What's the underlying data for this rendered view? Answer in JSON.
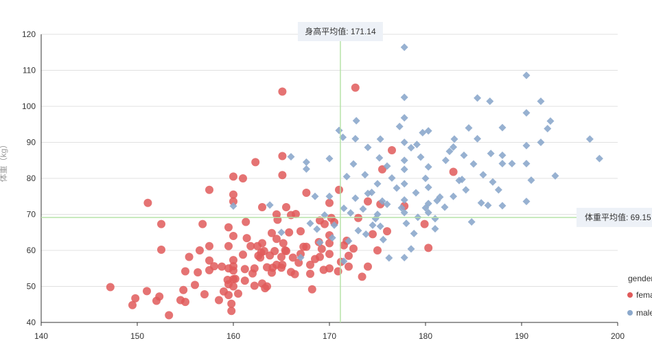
{
  "chart_data": {
    "type": "scatter",
    "xlabel": "",
    "ylabel": "体重（kg）",
    "xlim": [
      140,
      200
    ],
    "ylim": [
      40,
      120
    ],
    "x_ticks": [
      "140",
      "150",
      "160",
      "170",
      "180",
      "190",
      "200"
    ],
    "y_ticks": [
      "40",
      "50",
      "60",
      "70",
      "80",
      "90",
      "100",
      "110",
      "120"
    ],
    "grid": true,
    "legend": {
      "placement": "right",
      "title": "gender",
      "items": [
        "female",
        "male"
      ]
    },
    "mark_lines": {
      "x_mean": {
        "label": "身高平均值: 171.14",
        "value": 171.14
      },
      "y_mean": {
        "label": "体重平均值: 69.15",
        "value": 69.15
      }
    },
    "series": [
      {
        "name": "female",
        "color": "#e05a5a",
        "points": [
          [
            147.2,
            49.8
          ],
          [
            149.5,
            44.8
          ],
          [
            149.8,
            46.7
          ],
          [
            151.0,
            48.7
          ],
          [
            151.1,
            73.2
          ],
          [
            152.0,
            46.0
          ],
          [
            152.3,
            47.2
          ],
          [
            152.5,
            60.2
          ],
          [
            152.5,
            67.3
          ],
          [
            153.3,
            42.0
          ],
          [
            154.5,
            46.2
          ],
          [
            154.8,
            49.0
          ],
          [
            155.0,
            45.7
          ],
          [
            155.0,
            54.2
          ],
          [
            155.4,
            58.2
          ],
          [
            156.0,
            50.4
          ],
          [
            156.3,
            53.9
          ],
          [
            156.5,
            60.0
          ],
          [
            156.8,
            67.3
          ],
          [
            157.0,
            47.8
          ],
          [
            157.5,
            54.5
          ],
          [
            157.5,
            57.2
          ],
          [
            157.5,
            61.2
          ],
          [
            157.5,
            76.8
          ],
          [
            158.0,
            55.6
          ],
          [
            158.5,
            46.2
          ],
          [
            158.8,
            55.5
          ],
          [
            159.0,
            48.6
          ],
          [
            159.4,
            51.8
          ],
          [
            159.5,
            47.6
          ],
          [
            159.5,
            50.6
          ],
          [
            159.5,
            55.0
          ],
          [
            159.5,
            61.2
          ],
          [
            159.5,
            66.4
          ],
          [
            159.8,
            43.2
          ],
          [
            159.8,
            45.2
          ],
          [
            160.0,
            50.0
          ],
          [
            160.0,
            52.0
          ],
          [
            160.0,
            55.6
          ],
          [
            160.0,
            64.0
          ],
          [
            160.0,
            75.5
          ],
          [
            160.0,
            73.6
          ],
          [
            160.0,
            80.5
          ],
          [
            160.0,
            54.4
          ],
          [
            160.0,
            57.3
          ],
          [
            160.2,
            52.1
          ],
          [
            161.2,
            51.6
          ],
          [
            161.2,
            54.8
          ],
          [
            161.3,
            67.9
          ],
          [
            161.4,
            63.4
          ],
          [
            161.0,
            80.0
          ],
          [
            162.0,
            53.6
          ],
          [
            162.2,
            50.2
          ],
          [
            162.2,
            55.0
          ],
          [
            162.6,
            58.5
          ],
          [
            162.8,
            58.0
          ],
          [
            162.9,
            59.4
          ],
          [
            163.0,
            50.8
          ],
          [
            163.0,
            62.0
          ],
          [
            163.0,
            72.0
          ],
          [
            163.2,
            59.8
          ],
          [
            163.5,
            50.0
          ],
          [
            163.8,
            58.6
          ],
          [
            164.0,
            53.8
          ],
          [
            164.1,
            55.2
          ],
          [
            164.3,
            59.8
          ],
          [
            164.5,
            56.0
          ],
          [
            164.5,
            63.2
          ],
          [
            164.5,
            70.0
          ],
          [
            165.0,
            55.2
          ],
          [
            165.0,
            58.2
          ],
          [
            165.1,
            56.0
          ],
          [
            165.1,
            104.1
          ],
          [
            165.2,
            62.0
          ],
          [
            165.4,
            60.0
          ],
          [
            165.5,
            72.0
          ],
          [
            165.8,
            65.0
          ],
          [
            165.1,
            86.2
          ],
          [
            165.1,
            80.9
          ],
          [
            166.0,
            54.0
          ],
          [
            166.2,
            58.0
          ],
          [
            166.4,
            53.4
          ],
          [
            166.8,
            56.6
          ],
          [
            167.0,
            59.0
          ],
          [
            167.3,
            61.0
          ],
          [
            167.6,
            61.0
          ],
          [
            167.6,
            76.0
          ],
          [
            168.0,
            56.0
          ],
          [
            168.2,
            49.2
          ],
          [
            168.5,
            57.6
          ],
          [
            168.9,
            62.3
          ],
          [
            169.0,
            58.2
          ],
          [
            169.4,
            54.6
          ],
          [
            169.5,
            67.3
          ],
          [
            170.0,
            55.0
          ],
          [
            170.0,
            59.0
          ],
          [
            170.0,
            62.0
          ],
          [
            170.0,
            64.2
          ],
          [
            170.2,
            69.0
          ],
          [
            170.5,
            67.8
          ],
          [
            170.9,
            54.2
          ],
          [
            171.2,
            56.8
          ],
          [
            171.5,
            61.4
          ],
          [
            172.0,
            55.5
          ],
          [
            172.5,
            60.5
          ],
          [
            172.7,
            105.2
          ],
          [
            173.0,
            69.0
          ],
          [
            173.4,
            52.7
          ],
          [
            174.0,
            55.5
          ],
          [
            174.0,
            73.6
          ],
          [
            175.0,
            60.0
          ],
          [
            175.3,
            72.8
          ],
          [
            176.0,
            65.3
          ],
          [
            176.5,
            87.8
          ],
          [
            177.8,
            72.3
          ],
          [
            179.9,
            67.3
          ],
          [
            180.3,
            60.7
          ],
          [
            182.9,
            81.8
          ],
          [
            160.5,
            48.0
          ],
          [
            161.0,
            58.8
          ],
          [
            162.5,
            61.2
          ],
          [
            163.5,
            55.3
          ],
          [
            164.0,
            64.8
          ],
          [
            166.0,
            69.8
          ],
          [
            168.0,
            53.5
          ],
          [
            169.0,
            68.3
          ],
          [
            170.0,
            73.2
          ],
          [
            171.0,
            76.8
          ],
          [
            172.0,
            58.5
          ],
          [
            174.5,
            64.5
          ],
          [
            175.5,
            82.5
          ],
          [
            161.8,
            61.2
          ],
          [
            163.3,
            49.5
          ],
          [
            165.5,
            59.8
          ],
          [
            167.0,
            65.3
          ],
          [
            169.2,
            60.4
          ],
          [
            171.8,
            62.7
          ],
          [
            164.6,
            68.5
          ],
          [
            162.3,
            84.5
          ],
          [
            166.5,
            70.1
          ]
        ]
      },
      {
        "name": "male",
        "color": "#8ca9cc",
        "points": [
          [
            160.0,
            72.3
          ],
          [
            163.8,
            72.6
          ],
          [
            165.0,
            65.0
          ],
          [
            166.0,
            86.0
          ],
          [
            167.0,
            58.0
          ],
          [
            167.6,
            82.6
          ],
          [
            167.6,
            84.5
          ],
          [
            168.0,
            67.5
          ],
          [
            168.5,
            75.0
          ],
          [
            169.0,
            62.2
          ],
          [
            170.0,
            85.5
          ],
          [
            170.0,
            75.0
          ],
          [
            170.5,
            67.0
          ],
          [
            171.0,
            93.3
          ],
          [
            171.4,
            91.4
          ],
          [
            171.5,
            71.7
          ],
          [
            171.8,
            80.5
          ],
          [
            172.0,
            62.6
          ],
          [
            172.5,
            84.0
          ],
          [
            172.7,
            74.5
          ],
          [
            172.7,
            91.0
          ],
          [
            172.8,
            96.0
          ],
          [
            173.0,
            65.5
          ],
          [
            173.5,
            71.5
          ],
          [
            173.7,
            81.0
          ],
          [
            174.0,
            75.8
          ],
          [
            174.0,
            88.6
          ],
          [
            174.5,
            67.0
          ],
          [
            175.0,
            70.0
          ],
          [
            175.0,
            78.5
          ],
          [
            175.2,
            85.7
          ],
          [
            175.3,
            66.7
          ],
          [
            175.3,
            90.9
          ],
          [
            175.5,
            73.7
          ],
          [
            175.6,
            63.0
          ],
          [
            176.0,
            83.4
          ],
          [
            176.5,
            80.1
          ],
          [
            177.0,
            77.3
          ],
          [
            177.3,
            94.4
          ],
          [
            177.5,
            71.8
          ],
          [
            177.8,
            58.0
          ],
          [
            177.8,
            70.5
          ],
          [
            177.8,
            74.0
          ],
          [
            177.8,
            78.5
          ],
          [
            177.8,
            82.5
          ],
          [
            177.8,
            85.0
          ],
          [
            177.8,
            90.0
          ],
          [
            177.8,
            96.8
          ],
          [
            177.8,
            102.5
          ],
          [
            177.8,
            116.4
          ],
          [
            178.0,
            67.5
          ],
          [
            178.5,
            88.5
          ],
          [
            179.0,
            76.0
          ],
          [
            179.1,
            89.4
          ],
          [
            179.5,
            85.9
          ],
          [
            179.7,
            92.7
          ],
          [
            180.0,
            71.8
          ],
          [
            180.0,
            80.0
          ],
          [
            180.3,
            70.5
          ],
          [
            180.3,
            73.0
          ],
          [
            180.3,
            77.5
          ],
          [
            180.3,
            83.2
          ],
          [
            180.3,
            93.2
          ],
          [
            181.0,
            66.0
          ],
          [
            181.5,
            74.8
          ],
          [
            182.0,
            72.0
          ],
          [
            182.1,
            85.0
          ],
          [
            182.5,
            87.5
          ],
          [
            182.9,
            75.0
          ],
          [
            182.9,
            88.7
          ],
          [
            183.0,
            90.9
          ],
          [
            183.5,
            79.4
          ],
          [
            184.0,
            86.4
          ],
          [
            184.2,
            76.8
          ],
          [
            184.5,
            94.0
          ],
          [
            185.0,
            84.0
          ],
          [
            185.4,
            91.0
          ],
          [
            185.4,
            102.3
          ],
          [
            186.0,
            81.0
          ],
          [
            186.5,
            72.5
          ],
          [
            186.7,
            101.4
          ],
          [
            187.0,
            79.0
          ],
          [
            187.6,
            76.8
          ],
          [
            188.0,
            72.4
          ],
          [
            188.0,
            84.1
          ],
          [
            188.0,
            86.4
          ],
          [
            188.0,
            94.1
          ],
          [
            189.0,
            84.1
          ],
          [
            190.5,
            73.6
          ],
          [
            190.5,
            84.1
          ],
          [
            190.5,
            89.1
          ],
          [
            190.5,
            98.2
          ],
          [
            190.5,
            108.6
          ],
          [
            191.0,
            79.5
          ],
          [
            192.0,
            90.0
          ],
          [
            192.0,
            101.4
          ],
          [
            192.7,
            93.8
          ],
          [
            193.0,
            95.9
          ],
          [
            193.5,
            80.7
          ],
          [
            197.1,
            90.9
          ],
          [
            198.1,
            85.5
          ],
          [
            169.5,
            69.8
          ],
          [
            170.3,
            63.5
          ],
          [
            172.2,
            70.4
          ],
          [
            173.8,
            64.5
          ],
          [
            174.8,
            68.8
          ],
          [
            176.0,
            72.8
          ],
          [
            178.8,
            64.7
          ],
          [
            179.2,
            69.2
          ],
          [
            181.2,
            73.8
          ],
          [
            183.8,
            79.7
          ],
          [
            185.8,
            73.2
          ],
          [
            168.7,
            65.9
          ],
          [
            171.5,
            57.0
          ],
          [
            176.2,
            57.9
          ],
          [
            184.8,
            67.9
          ],
          [
            181.0,
            68.8
          ],
          [
            178.5,
            60.4
          ],
          [
            174.4,
            76.1
          ],
          [
            186.8,
            86.9
          ]
        ]
      }
    ]
  }
}
